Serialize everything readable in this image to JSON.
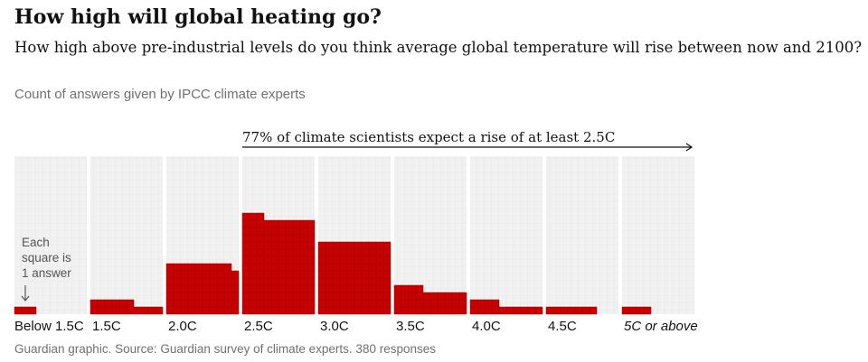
{
  "chart_data": {
    "type": "waffle",
    "title": "How high will global heating go?",
    "subtitle": "How high above pre-industrial levels do you think average global temperature will rise between now and 2100?",
    "caption": "Count of answers given by IPCC climate experts",
    "annotation": "77% of climate scientists expect a rise of at least 2.5C",
    "note": [
      "Each",
      "square is",
      "1 answer"
    ],
    "source": "Guardian graphic. Source: Guardian survey of climate experts. 380 responses",
    "categories": [
      "Below 1.5C",
      "1.5C",
      "2.0C",
      "2.5C",
      "3.0C",
      "3.5C",
      "4.0C",
      "4.5C",
      "5C or above"
    ],
    "values": [
      3,
      16,
      69,
      133,
      100,
      34,
      14,
      7,
      4
    ],
    "color": "#c70000"
  }
}
